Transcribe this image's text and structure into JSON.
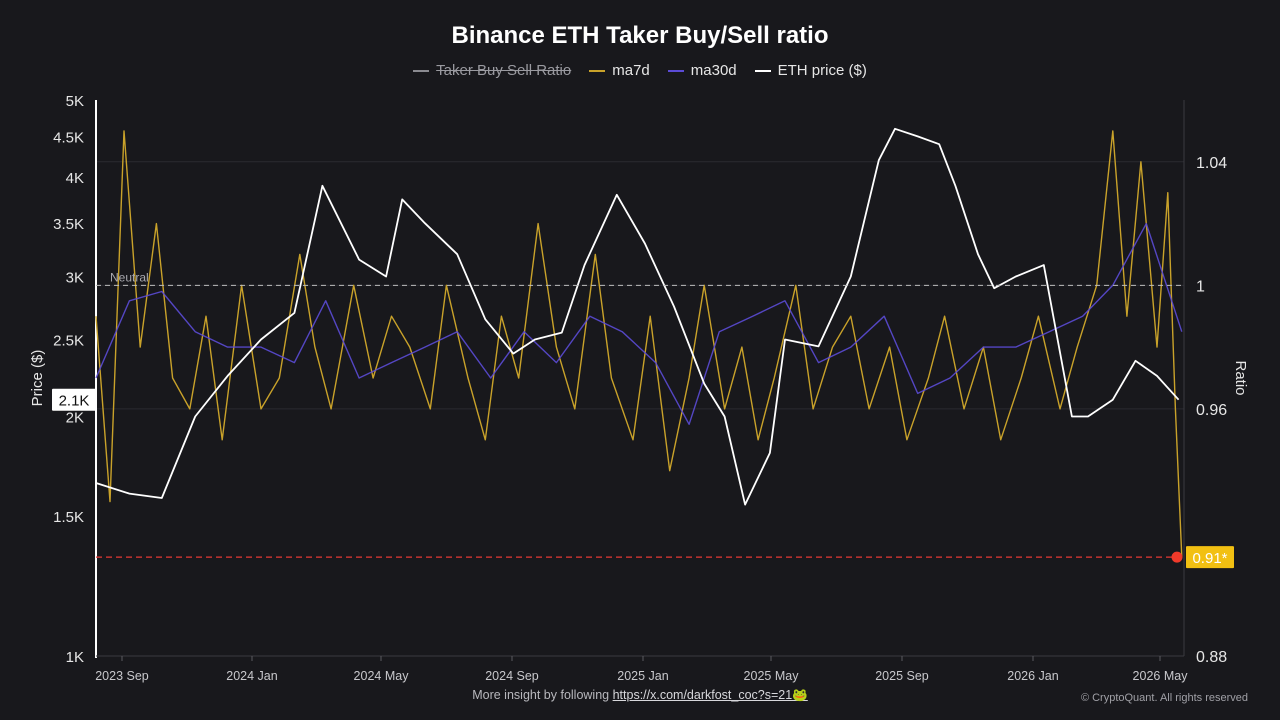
{
  "title": "Binance ETH Taker Buy/Sell ratio",
  "legend": [
    {
      "name": "Taker Buy Sell Ratio",
      "color": "#8a8a90",
      "enabled": false
    },
    {
      "name": "ma7d",
      "color": "#c9a22a",
      "enabled": true
    },
    {
      "name": "ma30d",
      "color": "#5b4bd6",
      "enabled": true
    },
    {
      "name": "ETH price ($)",
      "color": "#ffffff",
      "enabled": true
    }
  ],
  "footer": {
    "prefix": "More insight by following ",
    "link_text": "https://x.com/darkfost_coc?s=21🐸",
    "copyright": "© CryptoQuant. All rights reserved"
  },
  "chart_data": {
    "type": "line",
    "title": "Binance ETH Taker Buy/Sell ratio",
    "x_ticks": [
      "2023 Sep",
      "2024 Jan",
      "2024 May",
      "2024 Sep",
      "2025 Jan",
      "2025 May",
      "2025 Sep",
      "2026 Jan",
      "2026 May"
    ],
    "x_range": [
      "2023-08-15",
      "2026-05-20"
    ],
    "y_left": {
      "label": "Price ($)",
      "scale": "log",
      "range": [
        1000,
        5000
      ],
      "ticks": [
        "1K",
        "1.5K",
        "2K",
        "2.5K",
        "3K",
        "3.5K",
        "4K",
        "4.5K",
        "5K"
      ],
      "tick_values": [
        1000,
        1500,
        2000,
        2500,
        3000,
        3500,
        4000,
        4500,
        5000
      ],
      "current_value_label": "2.1K",
      "current_value": 2100
    },
    "y_right": {
      "label": "Ratio",
      "range": [
        0.88,
        1.06
      ],
      "ticks": [
        "0.88",
        "0.96",
        "1",
        "1.04"
      ],
      "tick_values": [
        0.88,
        0.96,
        1.0,
        1.04
      ]
    },
    "reference_lines": [
      {
        "label": "Neutral",
        "value": 1.0,
        "axis": "right",
        "style": "dashed",
        "color": "#bdbdbd"
      },
      {
        "label": "0.91*",
        "value": 0.912,
        "axis": "right",
        "style": "dashed",
        "color": "#e53935"
      }
    ],
    "series": [
      {
        "name": "ETH price ($)",
        "axis": "left",
        "color": "#ffffff",
        "x": [
          "2023-08-15",
          "2023-09-15",
          "2023-10-15",
          "2023-11-15",
          "2023-12-15",
          "2024-01-15",
          "2024-02-15",
          "2024-03-12",
          "2024-04-15",
          "2024-05-10",
          "2024-05-25",
          "2024-06-15",
          "2024-07-15",
          "2024-08-10",
          "2024-09-05",
          "2024-09-25",
          "2024-10-20",
          "2024-11-10",
          "2024-12-10",
          "2025-01-05",
          "2025-02-01",
          "2025-03-01",
          "2025-03-20",
          "2025-04-08",
          "2025-05-01",
          "2025-05-15",
          "2025-06-15",
          "2025-07-15",
          "2025-08-10",
          "2025-08-25",
          "2025-09-15",
          "2025-10-05",
          "2025-10-20",
          "2025-11-10",
          "2025-11-25",
          "2025-12-15",
          "2026-01-10",
          "2026-02-05",
          "2026-02-20",
          "2026-03-15",
          "2026-04-05",
          "2026-04-25",
          "2026-05-15"
        ],
        "y": [
          1650,
          1600,
          1580,
          2000,
          2250,
          2500,
          2700,
          3900,
          3150,
          3000,
          3750,
          3500,
          3200,
          2650,
          2400,
          2500,
          2550,
          3100,
          3800,
          3300,
          2750,
          2200,
          2000,
          1550,
          1800,
          2500,
          2450,
          3000,
          4200,
          4600,
          4500,
          4400,
          3900,
          3200,
          2900,
          3000,
          3100,
          2000,
          2000,
          2100,
          2350,
          2250,
          2100
        ]
      },
      {
        "name": "ma7d",
        "axis": "right",
        "color": "#c9a22a",
        "x": [
          "2023-08-15",
          "2023-08-28",
          "2023-09-10",
          "2023-09-25",
          "2023-10-10",
          "2023-10-25",
          "2023-11-10",
          "2023-11-25",
          "2023-12-10",
          "2023-12-28",
          "2024-01-15",
          "2024-02-01",
          "2024-02-20",
          "2024-03-05",
          "2024-03-20",
          "2024-04-10",
          "2024-04-28",
          "2024-05-15",
          "2024-06-01",
          "2024-06-20",
          "2024-07-05",
          "2024-07-25",
          "2024-08-10",
          "2024-08-25",
          "2024-09-10",
          "2024-09-28",
          "2024-10-15",
          "2024-11-01",
          "2024-11-20",
          "2024-12-05",
          "2024-12-25",
          "2025-01-10",
          "2025-01-28",
          "2025-02-15",
          "2025-03-01",
          "2025-03-20",
          "2025-04-05",
          "2025-04-20",
          "2025-05-05",
          "2025-05-25",
          "2025-06-10",
          "2025-06-28",
          "2025-07-15",
          "2025-08-01",
          "2025-08-20",
          "2025-09-05",
          "2025-09-25",
          "2025-10-10",
          "2025-10-28",
          "2025-11-15",
          "2025-12-01",
          "2025-12-20",
          "2026-01-05",
          "2026-01-25",
          "2026-02-10",
          "2026-02-28",
          "2026-03-15",
          "2026-03-28",
          "2026-04-10",
          "2026-04-25",
          "2026-05-05",
          "2026-05-12",
          "2026-05-18"
        ],
        "y": [
          0.99,
          0.93,
          1.05,
          0.98,
          1.02,
          0.97,
          0.96,
          0.99,
          0.95,
          1.0,
          0.96,
          0.97,
          1.01,
          0.98,
          0.96,
          1.0,
          0.97,
          0.99,
          0.98,
          0.96,
          1.0,
          0.97,
          0.95,
          0.99,
          0.97,
          1.02,
          0.98,
          0.96,
          1.01,
          0.97,
          0.95,
          0.99,
          0.94,
          0.97,
          1.0,
          0.96,
          0.98,
          0.95,
          0.97,
          1.0,
          0.96,
          0.98,
          0.99,
          0.96,
          0.98,
          0.95,
          0.97,
          0.99,
          0.96,
          0.98,
          0.95,
          0.97,
          0.99,
          0.96,
          0.98,
          1.0,
          1.05,
          0.99,
          1.04,
          0.98,
          1.03,
          0.96,
          0.912
        ]
      },
      {
        "name": "ma30d",
        "axis": "right",
        "color": "#5b4bd6",
        "x": [
          "2023-08-15",
          "2023-09-15",
          "2023-10-15",
          "2023-11-15",
          "2023-12-15",
          "2024-01-15",
          "2024-02-15",
          "2024-03-15",
          "2024-04-15",
          "2024-05-15",
          "2024-06-15",
          "2024-07-15",
          "2024-08-15",
          "2024-09-15",
          "2024-10-15",
          "2024-11-15",
          "2024-12-15",
          "2025-01-15",
          "2025-02-15",
          "2025-03-15",
          "2025-04-15",
          "2025-05-15",
          "2025-06-15",
          "2025-07-15",
          "2025-08-15",
          "2025-09-15",
          "2025-10-15",
          "2025-11-15",
          "2025-12-15",
          "2026-01-15",
          "2026-02-15",
          "2026-03-15",
          "2026-04-15",
          "2026-05-18"
        ],
        "y": [
          0.97,
          0.995,
          0.998,
          0.985,
          0.98,
          0.98,
          0.975,
          0.995,
          0.97,
          0.975,
          0.98,
          0.985,
          0.97,
          0.985,
          0.975,
          0.99,
          0.985,
          0.975,
          0.955,
          0.985,
          0.99,
          0.995,
          0.975,
          0.98,
          0.99,
          0.965,
          0.97,
          0.98,
          0.98,
          0.985,
          0.99,
          1.0,
          1.02,
          0.985
        ]
      }
    ]
  }
}
